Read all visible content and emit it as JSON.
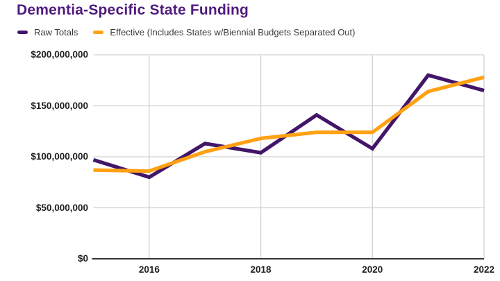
{
  "title": {
    "text": "Dementia-Specific State Funding",
    "color": "#4f1b7e"
  },
  "legend": {
    "position": "top-left",
    "items": [
      {
        "label": "Raw Totals",
        "color": "#421569"
      },
      {
        "label": "Effective (Includes States w/Biennial Budgets Separated Out)",
        "color": "#ffa113"
      }
    ]
  },
  "colors": {
    "background": "#ffffff",
    "gridline": "#d2d2d2",
    "axis_line": "#333333",
    "tick_text": "#1f1f1f",
    "legend_text": "#3c3c3c"
  },
  "chart_data": {
    "type": "line",
    "title": "Dementia-Specific State Funding",
    "xlabel": "",
    "ylabel": "",
    "grid": true,
    "legend_position": "top-left",
    "x": [
      2015,
      2016,
      2017,
      2018,
      2019,
      2020,
      2021,
      2022
    ],
    "xlim": [
      2015,
      2022
    ],
    "ylim": [
      0,
      200000000
    ],
    "x_ticks": [
      {
        "year": 2016,
        "label": "2016"
      },
      {
        "year": 2018,
        "label": "2018"
      },
      {
        "year": 2020,
        "label": "2020"
      },
      {
        "year": 2022,
        "label": "2022"
      }
    ],
    "y_ticks": [
      {
        "value": 0,
        "label": "$0"
      },
      {
        "value": 50000000,
        "label": "$50,000,000"
      },
      {
        "value": 100000000,
        "label": "$100,000,000"
      },
      {
        "value": 150000000,
        "label": "$150,000,000"
      },
      {
        "value": 200000000,
        "label": "$200,000,000"
      }
    ],
    "series": [
      {
        "name": "Raw Totals",
        "color": "#421569",
        "values": [
          97000000,
          80000000,
          113000000,
          104000000,
          141000000,
          108000000,
          180000000,
          165000000
        ]
      },
      {
        "name": "Effective (Includes States w/Biennial Budgets Separated Out)",
        "color": "#ffa113",
        "values": [
          87000000,
          86000000,
          105000000,
          118000000,
          124000000,
          124000000,
          164000000,
          178000000
        ]
      }
    ]
  }
}
